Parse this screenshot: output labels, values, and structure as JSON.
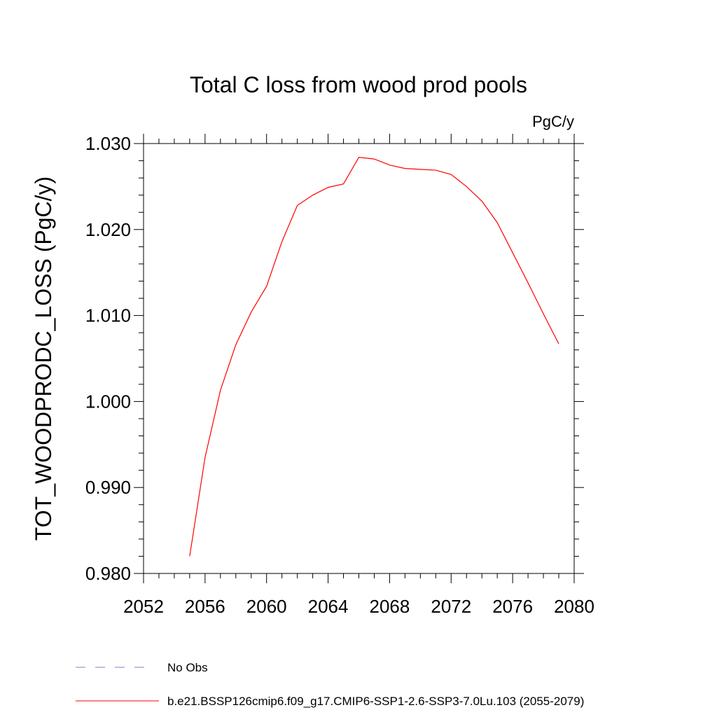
{
  "chart_data": {
    "type": "line",
    "title": "Total C loss from wood prod pools",
    "units_label": "PgC/y",
    "ylabel": "TOT_WOODPRODC_LOSS  (PgC/y)",
    "xlabel": "",
    "xlim": [
      2052,
      2080
    ],
    "ylim": [
      0.98,
      1.03
    ],
    "x_ticks": [
      2052,
      2056,
      2060,
      2064,
      2068,
      2072,
      2076,
      2080
    ],
    "x_tick_labels": [
      "2052",
      "2056",
      "2060",
      "2064",
      "2068",
      "2072",
      "2076",
      "2080"
    ],
    "y_ticks": [
      0.98,
      0.99,
      1.0,
      1.01,
      1.02,
      1.03
    ],
    "y_tick_labels": [
      "0.980",
      "0.990",
      "1.000",
      "1.010",
      "1.020",
      "1.030"
    ],
    "grid": false,
    "series": [
      {
        "name": "b.e21.BSSP126cmip6.f09_g17.CMIP6-SSP1-2.6-SSP3-7.0Lu.103 (2055-2079)",
        "color": "#ff0000",
        "x": [
          2055,
          2056,
          2057,
          2058,
          2059,
          2060,
          2061,
          2062,
          2063,
          2064,
          2065,
          2066,
          2067,
          2068,
          2069,
          2070,
          2071,
          2072,
          2073,
          2074,
          2075,
          2076,
          2077,
          2078,
          2079
        ],
        "y": [
          0.982,
          0.9935,
          1.0013,
          1.0066,
          1.0104,
          1.0134,
          1.0186,
          1.0228,
          1.024,
          1.0249,
          1.0253,
          1.0284,
          1.0282,
          1.0275,
          1.0271,
          1.027,
          1.0269,
          1.0264,
          1.025,
          1.0233,
          1.0208,
          1.0173,
          1.0138,
          1.0102,
          1.0067
        ]
      }
    ],
    "legend": {
      "placement": "bottom-left",
      "entries": [
        {
          "label": "No Obs",
          "color": "#8080c8",
          "style": "dashed"
        },
        {
          "label": "b.e21.BSSP126cmip6.f09_g17.CMIP6-SSP1-2.6-SSP3-7.0Lu.103 (2055-2079)",
          "color": "#ff0000",
          "style": "solid"
        }
      ]
    }
  }
}
